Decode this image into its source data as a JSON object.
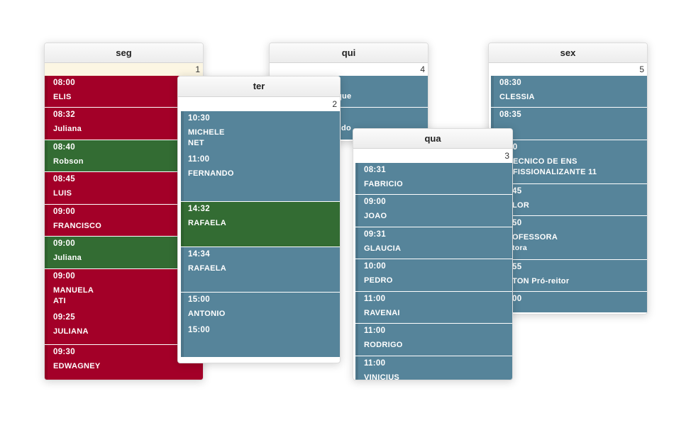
{
  "seg": {
    "day": "seg",
    "daynum": "1",
    "slots": [
      {
        "time": "08:00",
        "name": "ELIS"
      },
      {
        "time": "08:32",
        "name": "Juliana"
      },
      {
        "time": "08:40",
        "name": "Robson"
      },
      {
        "time": "08:45",
        "name": "LUIS"
      },
      {
        "time": "09:00",
        "name": "FRANCISCO"
      },
      {
        "time": "09:00",
        "name": "Juliana"
      },
      {
        "time": "09:00",
        "name": "MANUELA ATI",
        "time2": "09:25",
        "name2": "JULIANA"
      },
      {
        "time": "09:30",
        "name": "EDWAGNEY"
      }
    ]
  },
  "ter": {
    "day": "ter",
    "daynum": "2",
    "slots": [
      {
        "time": "10:30",
        "name": "MICHELE NET",
        "time2": "11:00",
        "name2": "FERNANDO"
      },
      {
        "time": "14:32",
        "name": "RAFAELA"
      },
      {
        "time": "14:34",
        "name": "RAFAELA"
      },
      {
        "time": "15:00",
        "name": "ANTONIO",
        "time2": "15:00"
      }
    ]
  },
  "qua": {
    "day": "qua",
    "daynum": "3",
    "slots": [
      {
        "time": "08:31",
        "name": "FABRICIO"
      },
      {
        "time": "09:00",
        "name": "JOAO"
      },
      {
        "time": "09:31",
        "name": "GLAUCIA"
      },
      {
        "time": "10:00",
        "name": "PEDRO"
      },
      {
        "time": "11:00",
        "name": "RAVENAI"
      },
      {
        "time": "11:00",
        "name": "RODRIGO"
      },
      {
        "time": "11:00",
        "name": "VINICIUS"
      }
    ]
  },
  "qui": {
    "day": "qui",
    "daynum": "4",
    "slots": [
      {
        "name": "uerque"
      },
      {
        "name": "do"
      }
    ]
  },
  "sex": {
    "day": "sex",
    "daynum": "5",
    "slots": [
      {
        "time": "08:30",
        "name": "CLESSIA"
      },
      {
        "time": "08:35"
      },
      {
        "time": "10",
        "name": "TECNICO DE ENS",
        "name_b": "OFISSIONALIZANTE 11"
      },
      {
        "time": "45",
        "name": "LOR"
      },
      {
        "time": "50",
        "name": "OFESSORA",
        "name_b": "tora"
      },
      {
        "time": "55",
        "name": "TON Pró-reitor"
      },
      {
        "time": "00"
      }
    ]
  },
  "colors": {
    "red": "#a30028",
    "green": "#336c33",
    "blue": "#56849a",
    "today": "#fcf6e3"
  }
}
